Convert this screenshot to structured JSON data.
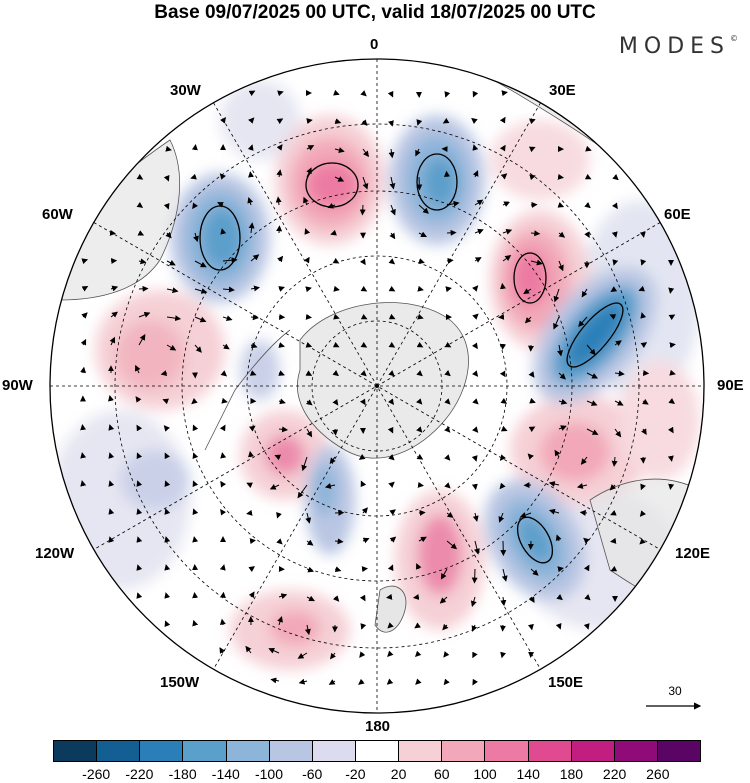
{
  "title": "Base 09/07/2025 00 UTC, valid 18/07/2025 00 UTC",
  "brand": "MODES",
  "brand_mark": "©",
  "meridian_labels": {
    "m0": "0",
    "m30e": "30E",
    "m60e": "60E",
    "m90e": "90E",
    "m120e": "120E",
    "m150e": "150E",
    "m180": "180",
    "m150w": "150W",
    "m120w": "120W",
    "m90w": "90W",
    "m60w": "60W",
    "m30w": "30W"
  },
  "reference_vector": "30",
  "colorbar": {
    "ticks": [
      "-260",
      "-220",
      "-180",
      "-140",
      "-100",
      "-60",
      "-20",
      "20",
      "60",
      "100",
      "140",
      "180",
      "220",
      "260"
    ],
    "colors": [
      "#0b3a5c",
      "#135f93",
      "#2b7fb8",
      "#5b9fcb",
      "#8db4d9",
      "#b9c6e3",
      "#dcdcee",
      "#ffffff",
      "#f5d0d6",
      "#f2a8b8",
      "#ec7aa2",
      "#e04a90",
      "#c21e82",
      "#8e0b78",
      "#5a0466"
    ]
  },
  "colors": {
    "continent": "#e6e6e6",
    "coast": "#555555",
    "grid": "#000000"
  }
}
